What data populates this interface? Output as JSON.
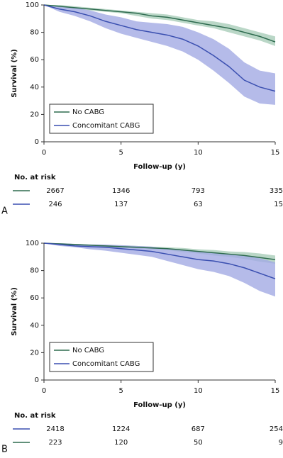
{
  "chart_data": [
    {
      "type": "line",
      "panel_label": "A",
      "xlabel": "Follow-up (y)",
      "ylabel": "Survival (%)",
      "xlim": [
        0,
        15
      ],
      "ylim": [
        0,
        100
      ],
      "xticks": [
        0,
        5,
        10,
        15
      ],
      "yticks": [
        0,
        20,
        40,
        60,
        80,
        100
      ],
      "x": [
        0,
        1,
        2,
        3,
        4,
        5,
        6,
        7,
        8,
        9,
        10,
        11,
        12,
        13,
        14,
        15
      ],
      "series": [
        {
          "name": "No CABG",
          "color": "#2e6b4f",
          "band_color": "#a9cdb9",
          "values": [
            100,
            99,
            98,
            97,
            96,
            95,
            94,
            92,
            91,
            89,
            87,
            85,
            83,
            80,
            77,
            73
          ],
          "lower": [
            100,
            98,
            97,
            96,
            95,
            94,
            92,
            90,
            89,
            87,
            85,
            83,
            80,
            77,
            74,
            70
          ],
          "upper": [
            100,
            100,
            99,
            98,
            97,
            96,
            95,
            94,
            93,
            91,
            89,
            88,
            86,
            83,
            80,
            77
          ]
        },
        {
          "name": "Concomitant CABG",
          "color": "#3a4fb0",
          "band_color": "#a3aae3",
          "values": [
            100,
            97,
            95,
            92,
            88,
            85,
            82,
            80,
            78,
            75,
            70,
            63,
            55,
            45,
            40,
            37
          ],
          "lower": [
            100,
            95,
            92,
            88,
            83,
            79,
            76,
            73,
            70,
            66,
            60,
            52,
            43,
            33,
            28,
            27
          ],
          "upper": [
            100,
            99,
            98,
            96,
            93,
            91,
            88,
            87,
            86,
            84,
            80,
            75,
            68,
            58,
            52,
            50
          ]
        }
      ],
      "risk_table": {
        "title": "No. at risk",
        "rows": [
          {
            "color": "#2e6b4f",
            "values": [
              2667,
              1346,
              793,
              335
            ]
          },
          {
            "color": "#3a4fb0",
            "values": [
              246,
              137,
              63,
              15
            ]
          }
        ]
      }
    },
    {
      "type": "line",
      "panel_label": "B",
      "xlabel": "Follow-up (y)",
      "ylabel": "Survival (%)",
      "xlim": [
        0,
        15
      ],
      "ylim": [
        0,
        100
      ],
      "xticks": [
        0,
        5,
        10,
        15
      ],
      "yticks": [
        0,
        20,
        40,
        60,
        80,
        100
      ],
      "x": [
        0,
        1,
        2,
        3,
        4,
        5,
        6,
        7,
        8,
        9,
        10,
        11,
        12,
        13,
        14,
        15
      ],
      "series": [
        {
          "name": "No CABG",
          "color": "#2e6b4f",
          "band_color": "#a9cdb9",
          "values": [
            100,
            99.5,
            99,
            98.5,
            98,
            97.5,
            97,
            96.5,
            96,
            95,
            94,
            93,
            92,
            91,
            89.5,
            88
          ],
          "lower": [
            100,
            99,
            98.5,
            98,
            97,
            96.5,
            96,
            95.5,
            95,
            93.5,
            92.5,
            91,
            90,
            88.5,
            86.5,
            85
          ],
          "upper": [
            100,
            100,
            99.5,
            99,
            98.5,
            98.5,
            98,
            97.5,
            97,
            96.5,
            95.5,
            95,
            94,
            93.5,
            92.5,
            91
          ]
        },
        {
          "name": "Concomitant CABG",
          "color": "#3a4fb0",
          "band_color": "#a3aae3",
          "values": [
            100,
            99,
            98,
            97.5,
            97,
            96,
            95,
            94,
            92,
            90,
            88,
            87,
            85,
            82,
            78,
            74
          ],
          "lower": [
            100,
            98,
            97,
            95.5,
            94.5,
            93,
            91.5,
            90,
            87,
            84,
            81,
            79,
            76,
            71,
            65,
            61
          ],
          "upper": [
            100,
            100,
            99.5,
            99,
            99,
            98.5,
            98,
            97.5,
            96,
            95,
            94,
            93,
            92,
            91,
            89,
            86
          ]
        }
      ],
      "risk_table": {
        "title": "No. at risk",
        "rows": [
          {
            "color": "#3a4fb0",
            "values": [
              2418,
              1224,
              687,
              254
            ]
          },
          {
            "color": "#2e6b4f",
            "values": [
              223,
              120,
              50,
              9
            ]
          }
        ]
      }
    }
  ]
}
